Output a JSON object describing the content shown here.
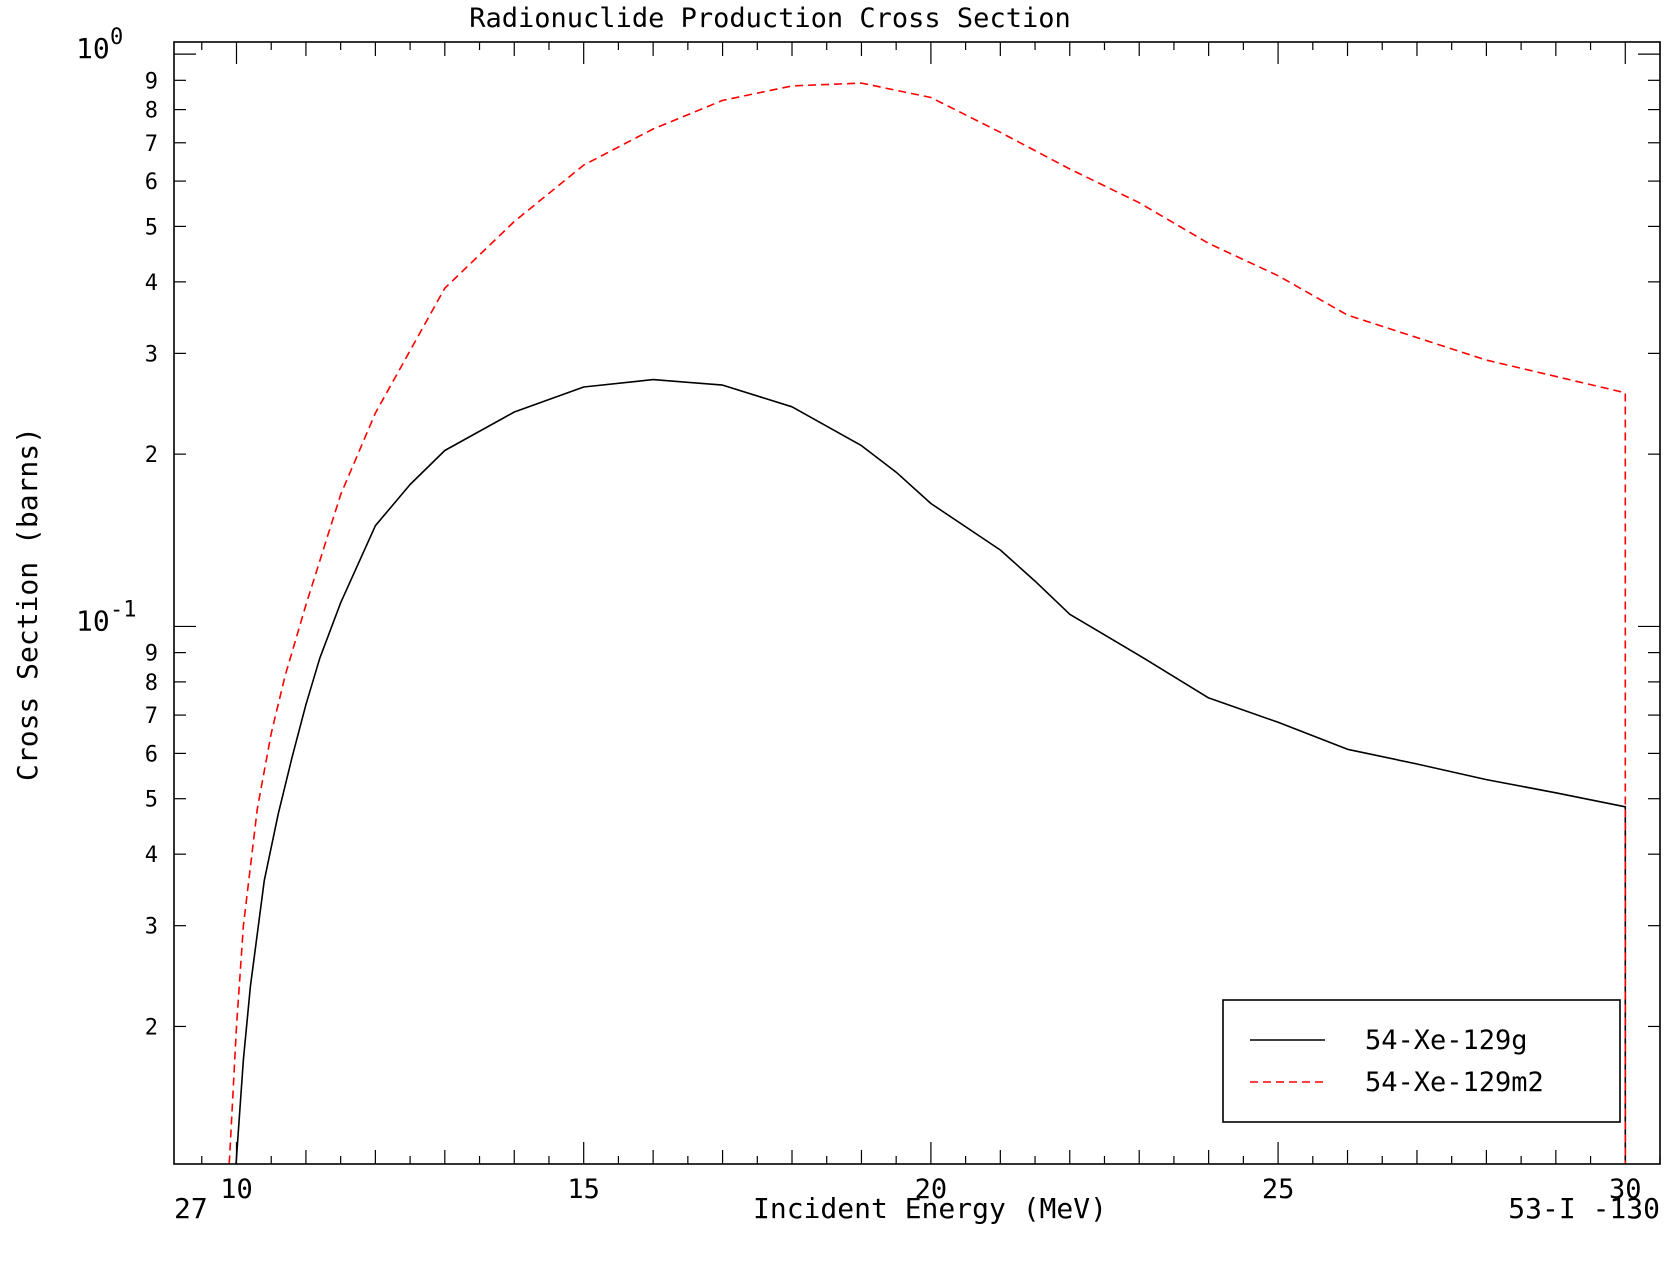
{
  "chart_data": {
    "type": "line",
    "title": "Radionuclide Production Cross Section",
    "xlabel": "Incident Energy (MeV)",
    "ylabel": "Cross Section (barns)",
    "xlim": [
      9.1,
      30.5
    ],
    "ylim": [
      0.0115,
      1.05
    ],
    "yscale": "log",
    "x_ticks": [
      10,
      15,
      20,
      25,
      30
    ],
    "y_decade_labels": [
      {
        "value": 1.0,
        "base": "10",
        "exp": "0"
      },
      {
        "value": 0.1,
        "base": "10",
        "exp": "-1"
      }
    ],
    "y_minor_labels": [
      {
        "value": 0.9,
        "label": "9"
      },
      {
        "value": 0.8,
        "label": "8"
      },
      {
        "value": 0.7,
        "label": "7"
      },
      {
        "value": 0.6,
        "label": "6"
      },
      {
        "value": 0.5,
        "label": "5"
      },
      {
        "value": 0.4,
        "label": "4"
      },
      {
        "value": 0.3,
        "label": "3"
      },
      {
        "value": 0.2,
        "label": "2"
      },
      {
        "value": 0.09,
        "label": "9"
      },
      {
        "value": 0.08,
        "label": "8"
      },
      {
        "value": 0.07,
        "label": "7"
      },
      {
        "value": 0.06,
        "label": "6"
      },
      {
        "value": 0.05,
        "label": "5"
      },
      {
        "value": 0.04,
        "label": "4"
      },
      {
        "value": 0.03,
        "label": "3"
      },
      {
        "value": 0.02,
        "label": "2"
      }
    ],
    "grid": false,
    "legend_position": "bottom-right",
    "footer_left": "27",
    "footer_right": "53-I -130",
    "series": [
      {
        "name": "54-Xe-129g",
        "color": "#000000",
        "dash": "solid",
        "x": [
          9.9,
          10.0,
          10.1,
          10.2,
          10.4,
          10.6,
          10.8,
          11.0,
          11.2,
          11.5,
          12.0,
          12.5,
          13.0,
          14.0,
          15.0,
          16.0,
          17.0,
          18.0,
          19.0,
          19.5,
          20.0,
          21.0,
          21.5,
          22.0,
          23.0,
          24.0,
          25.0,
          26.0,
          27.0,
          28.0,
          29.0,
          30.0,
          30.0
        ],
        "y": [
          0.008,
          0.0118,
          0.0175,
          0.0235,
          0.036,
          0.047,
          0.059,
          0.073,
          0.088,
          0.11,
          0.15,
          0.177,
          0.203,
          0.237,
          0.262,
          0.27,
          0.264,
          0.242,
          0.207,
          0.186,
          0.164,
          0.136,
          0.12,
          0.105,
          0.089,
          0.075,
          0.068,
          0.061,
          0.0575,
          0.054,
          0.0512,
          0.0484,
          0.0115
        ]
      },
      {
        "name": "54-Xe-129m2",
        "color": "#ff0000",
        "dash": "dashed",
        "x": [
          9.8,
          9.9,
          10.0,
          10.1,
          10.3,
          10.5,
          10.7,
          11.0,
          11.5,
          12.0,
          13.0,
          14.0,
          15.0,
          16.0,
          17.0,
          18.0,
          19.0,
          20.0,
          21.0,
          22.0,
          23.0,
          24.0,
          25.0,
          26.0,
          28.0,
          30.0,
          30.0
        ],
        "y": [
          0.008,
          0.0118,
          0.02,
          0.03,
          0.048,
          0.065,
          0.082,
          0.109,
          0.17,
          0.236,
          0.39,
          0.51,
          0.64,
          0.74,
          0.83,
          0.88,
          0.89,
          0.84,
          0.73,
          0.63,
          0.55,
          0.467,
          0.41,
          0.35,
          0.292,
          0.256,
          0.0115
        ]
      }
    ]
  }
}
